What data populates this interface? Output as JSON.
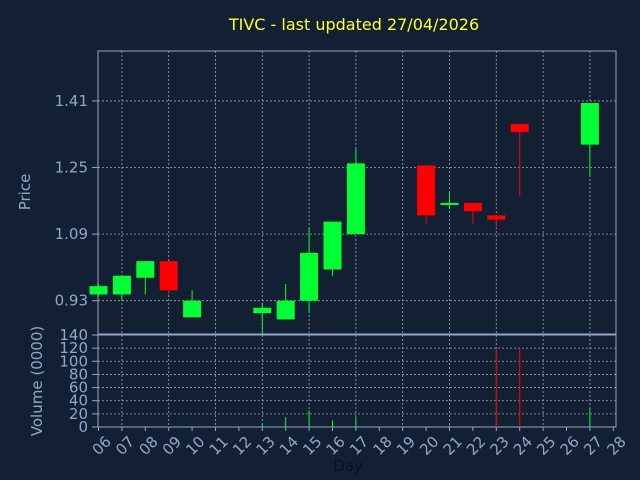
{
  "title": "TIVC - last updated 27/04/2026",
  "chart_data": [
    {
      "type": "candlestick",
      "ylabel": "Price",
      "ylim": [
        0.85,
        1.53
      ],
      "yticks": [
        "0.93",
        "1.09",
        "1.25",
        "1.41"
      ],
      "grid": true,
      "colors": {
        "up": "#00ff33",
        "down": "#ff0000",
        "grid": "#9aa6b5",
        "axis": "#8fa8c8"
      },
      "candles": [
        {
          "day": 6,
          "open": 0.945,
          "close": 0.965,
          "high": 0.97,
          "low": 0.94
        },
        {
          "day": 7,
          "open": 0.945,
          "close": 0.99,
          "high": 0.99,
          "low": 0.93
        },
        {
          "day": 8,
          "open": 0.985,
          "close": 1.025,
          "high": 1.025,
          "low": 0.945
        },
        {
          "day": 9,
          "open": 1.025,
          "close": 0.955,
          "high": 1.025,
          "low": 0.945
        },
        {
          "day": 10,
          "open": 0.89,
          "close": 0.93,
          "high": 0.955,
          "low": 0.89
        },
        {
          "day": 13,
          "open": 0.9,
          "close": 0.913,
          "high": 0.925,
          "low": 0.85
        },
        {
          "day": 14,
          "open": 0.885,
          "close": 0.93,
          "high": 0.97,
          "low": 0.885
        },
        {
          "day": 15,
          "open": 0.93,
          "close": 1.045,
          "high": 1.105,
          "low": 0.9
        },
        {
          "day": 16,
          "open": 1.005,
          "close": 1.12,
          "high": 1.12,
          "low": 0.99
        },
        {
          "day": 17,
          "open": 1.09,
          "close": 1.26,
          "high": 1.295,
          "low": 1.09
        },
        {
          "day": 20,
          "open": 1.255,
          "close": 1.135,
          "high": 1.255,
          "low": 1.115
        },
        {
          "day": 21,
          "open": 1.16,
          "close": 1.165,
          "high": 1.19,
          "low": 1.15
        },
        {
          "day": 22,
          "open": 1.165,
          "close": 1.145,
          "high": 1.165,
          "low": 1.115
        },
        {
          "day": 23,
          "open": 1.135,
          "close": 1.125,
          "high": 1.135,
          "low": 1.105
        },
        {
          "day": 24,
          "open": 1.355,
          "close": 1.335,
          "high": 1.355,
          "low": 1.18
        },
        {
          "day": 27,
          "open": 1.305,
          "close": 1.405,
          "high": 1.405,
          "low": 1.23
        }
      ]
    },
    {
      "type": "bar",
      "ylabel": "Volume (0000)",
      "xlabel": "Day",
      "ylim": [
        0,
        140
      ],
      "yticks": [
        "0",
        "20",
        "40",
        "60",
        "80",
        "100",
        "120",
        "140"
      ],
      "categories": [
        "06",
        "07",
        "08",
        "09",
        "10",
        "11",
        "12",
        "13",
        "14",
        "15",
        "16",
        "17",
        "18",
        "19",
        "20",
        "21",
        "22",
        "23",
        "24",
        "25",
        "26",
        "27",
        "28"
      ],
      "volumes": [
        {
          "day": 6,
          "value": 1,
          "up": true
        },
        {
          "day": 7,
          "value": 1,
          "up": true
        },
        {
          "day": 8,
          "value": 1,
          "up": true
        },
        {
          "day": 9,
          "value": 1,
          "up": false
        },
        {
          "day": 10,
          "value": 1,
          "up": true
        },
        {
          "day": 13,
          "value": 5,
          "up": true
        },
        {
          "day": 14,
          "value": 15,
          "up": true
        },
        {
          "day": 15,
          "value": 25,
          "up": true
        },
        {
          "day": 16,
          "value": 10,
          "up": true
        },
        {
          "day": 17,
          "value": 15,
          "up": true
        },
        {
          "day": 20,
          "value": 2,
          "up": false
        },
        {
          "day": 21,
          "value": 2,
          "up": true
        },
        {
          "day": 22,
          "value": 2,
          "up": false
        },
        {
          "day": 23,
          "value": 120,
          "up": false
        },
        {
          "day": 24,
          "value": 120,
          "up": false
        },
        {
          "day": 27,
          "value": 28,
          "up": true
        }
      ]
    }
  ]
}
